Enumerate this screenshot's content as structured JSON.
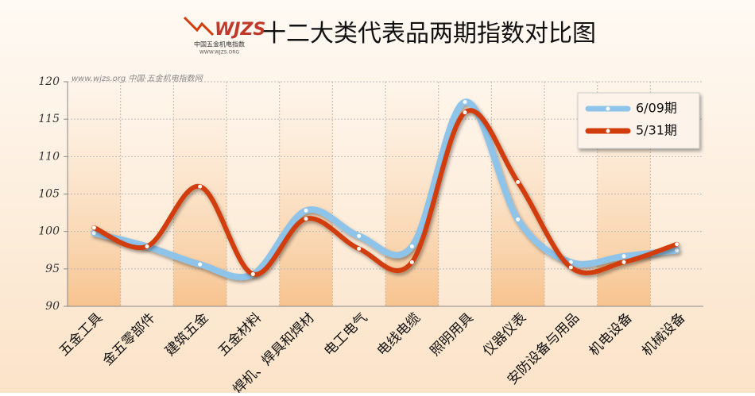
{
  "logo": {
    "name": "WJZS",
    "subtitle": "中国五金机电指数",
    "url": "WWW.WJZS.ORG"
  },
  "chart_data": {
    "type": "line",
    "title": "十二大类代表品两期指数对比图",
    "watermark": "www.wjzs.org 中国·五金机电指数网",
    "categories": [
      "五金工具",
      "金五零部件",
      "建筑五金",
      "五金材料",
      "焊机、焊具和焊材",
      "电工电气",
      "电线电缆",
      "照明用具",
      "仪器仪表",
      "安防设备与用品",
      "机电设备",
      "机械设备"
    ],
    "series": [
      {
        "name": "6/09期",
        "color": "#8ec3ea",
        "values": [
          99.8,
          98.0,
          95.6,
          94.3,
          102.8,
          99.4,
          98.0,
          117.3,
          101.6,
          95.9,
          96.7,
          97.5
        ]
      },
      {
        "name": "5/31期",
        "color": "#d23c0a",
        "values": [
          100.5,
          98.0,
          106.0,
          94.3,
          101.7,
          97.7,
          95.9,
          115.9,
          106.6,
          95.2,
          95.9,
          98.3
        ]
      }
    ],
    "ylim": [
      90,
      120
    ],
    "yticks": [
      90,
      95,
      100,
      105,
      110,
      115,
      120
    ],
    "grid": true,
    "legend": "top-right"
  }
}
